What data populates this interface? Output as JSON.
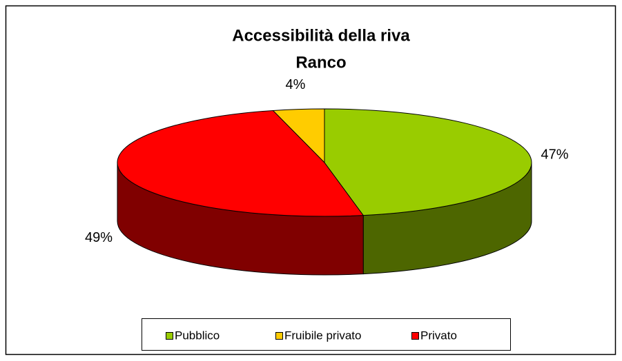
{
  "chart_data": {
    "type": "pie3d",
    "title": "Accessibilità della riva",
    "subtitle": "Ranco",
    "categories": [
      "Pubblico",
      "Fruibile privato",
      "Privato"
    ],
    "values": [
      47,
      4,
      49
    ],
    "value_labels": [
      "47%",
      "4%",
      "49%"
    ],
    "colors": [
      "#99cc00",
      "#ffcc00",
      "#ff0000"
    ],
    "legend": "bottom"
  }
}
